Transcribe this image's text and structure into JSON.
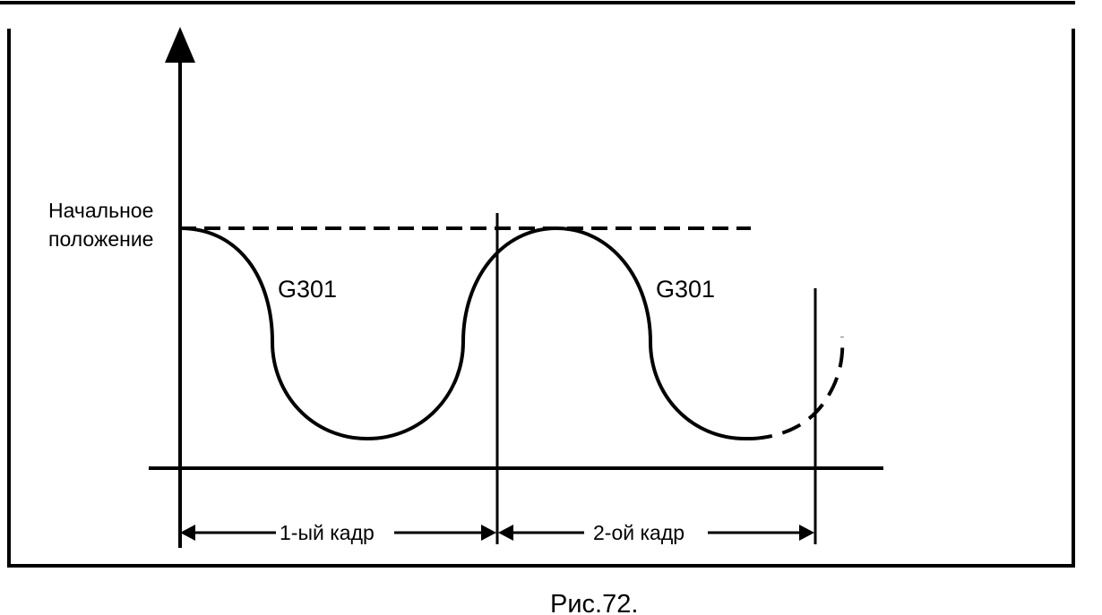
{
  "diagram": {
    "start_position_line1": "Начальное",
    "start_position_line2": "положение",
    "block_label_1": "G301",
    "block_label_2": "G301",
    "frame_1": "1-ый кадр",
    "frame_2": "2-ой кадр"
  },
  "caption": "Рис.72.",
  "colors": {
    "line": "#000000",
    "background": "#ffffff"
  }
}
